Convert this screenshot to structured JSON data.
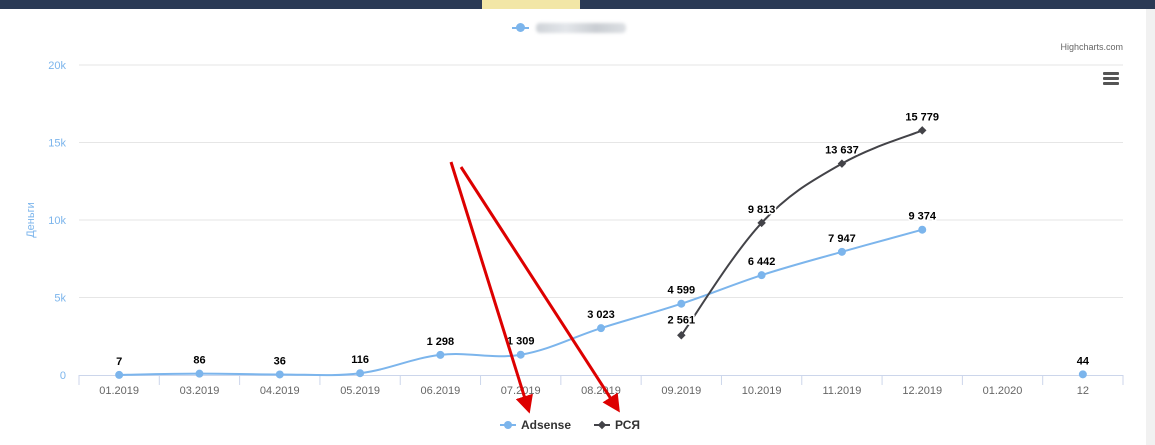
{
  "credits": "Highcharts.com",
  "colors": {
    "adsense": "#7cb5ec",
    "rsya": "#434348",
    "arrow": "#dd0000",
    "axis_label": "#7cb5ec"
  },
  "icons": {
    "menu": "hamburger-menu-icon",
    "arrows": "red-arrow-annotation"
  },
  "chart_data": {
    "type": "line",
    "categories": [
      "01.2019",
      "03.2019",
      "04.2019",
      "05.2019",
      "06.2019",
      "07.2019",
      "08.2019",
      "09.2019",
      "10.2019",
      "11.2019",
      "12.2019",
      "01.2020",
      "12"
    ],
    "ylabel": "Деньги",
    "ylim": [
      0,
      20000
    ],
    "yticks": [
      0,
      5000,
      10000,
      15000,
      20000
    ],
    "ytick_labels": [
      "0",
      "5k",
      "10k",
      "15k",
      "20k"
    ],
    "grid": true,
    "legend_position": "bottom-center",
    "series": [
      {
        "name": "Adsense",
        "values": [
          7,
          86,
          36,
          116,
          1298,
          1309,
          3023,
          4599,
          6442,
          7947,
          9374,
          null,
          44
        ],
        "labels": [
          "7",
          "86",
          "36",
          "116",
          "1 298",
          "1 309",
          "3 023",
          "4 599",
          "6 442",
          "7 947",
          "9 374",
          "",
          "44"
        ]
      },
      {
        "name": "РСЯ",
        "values": [
          null,
          null,
          null,
          null,
          null,
          null,
          null,
          2561,
          9813,
          13637,
          15779,
          null,
          null
        ],
        "labels": [
          "",
          "",
          "",
          "",
          "",
          "",
          "",
          "2 561",
          "9 813",
          "13 637",
          "15 779",
          "",
          ""
        ]
      }
    ]
  }
}
